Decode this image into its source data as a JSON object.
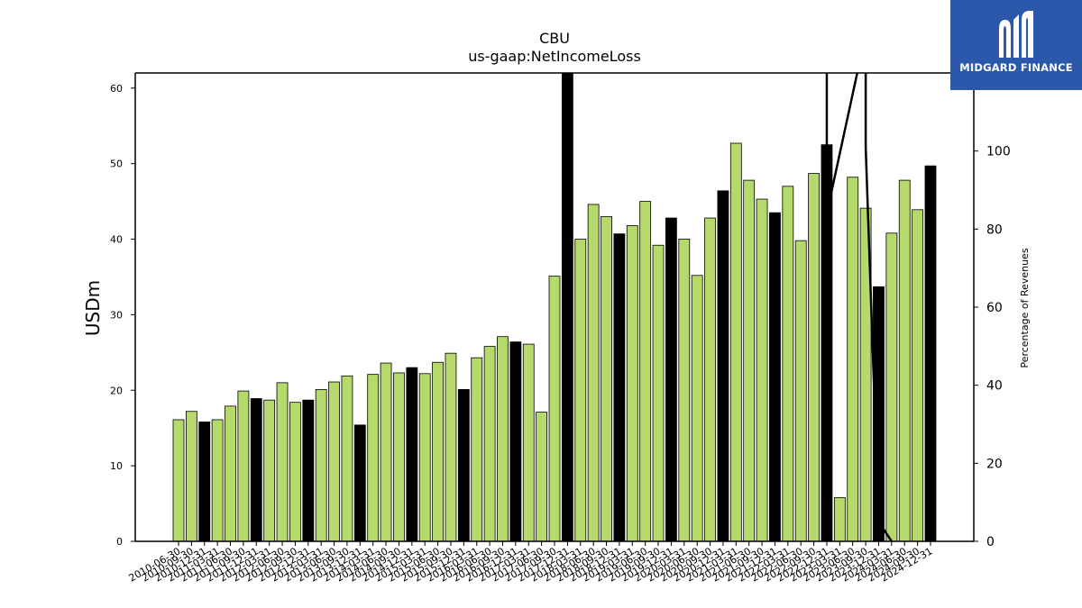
{
  "chart_data": {
    "type": "bar",
    "title": "CBU",
    "subtitle": "us-gaap:NetIncomeLoss",
    "ylabel": "USDm",
    "y2label": "Percentage of Revenues",
    "ylim": [
      0,
      62
    ],
    "y2lim": [
      0,
      120
    ],
    "yticks": [
      0,
      10,
      20,
      30,
      40,
      50,
      60
    ],
    "y2ticks": [
      0,
      20,
      40,
      60,
      80,
      100
    ],
    "bar_colors": {
      "quarter": "#b5d96a",
      "annual": "#000000"
    },
    "line_color": "#000000",
    "categories": [
      "2010-06-30",
      "2010-09-30",
      "2010-12-31",
      "2011-03-31",
      "2011-06-30",
      "2011-09-30",
      "2011-12-31",
      "2012-03-31",
      "2012-06-30",
      "2012-09-30",
      "2012-12-31",
      "2013-03-31",
      "2013-06-30",
      "2013-09-30",
      "2013-12-31",
      "2014-03-31",
      "2014-06-30",
      "2014-09-30",
      "2014-12-31",
      "2015-03-31",
      "2015-06-30",
      "2015-09-30",
      "2015-12-31",
      "2016-03-31",
      "2016-06-30",
      "2016-09-30",
      "2016-12-31",
      "2017-03-31",
      "2017-06-30",
      "2017-09-30",
      "2017-12-31",
      "2018-03-31",
      "2018-06-30",
      "2018-09-30",
      "2018-12-31",
      "2019-03-31",
      "2019-06-30",
      "2019-09-30",
      "2019-12-31",
      "2020-03-31",
      "2020-06-30",
      "2020-09-30",
      "2020-12-31",
      "2021-03-31",
      "2021-06-30",
      "2021-09-30",
      "2021-12-31",
      "2022-03-31",
      "2022-06-30",
      "2022-09-30",
      "2022-12-31",
      "2023-03-31",
      "2023-06-30",
      "2023-09-30",
      "2023-12-31",
      "2024-03-31",
      "2024-06-30",
      "2024-09-30",
      "2024-12-31"
    ],
    "series": [
      {
        "values": [
          16.1,
          17.2,
          15.8,
          16.1,
          17.9,
          19.9,
          18.9,
          18.7,
          21.0,
          18.4,
          18.7,
          20.1,
          21.1,
          21.9,
          15.4,
          22.1,
          23.6,
          22.3,
          23.0,
          22.2,
          23.7,
          24.9,
          20.1,
          24.3,
          25.8,
          27.1,
          26.4,
          26.1,
          17.1,
          35.1,
          62.0,
          40.0,
          44.6,
          43.0,
          40.7,
          41.8,
          45.0,
          39.2,
          42.8,
          40.0,
          35.2,
          42.8,
          46.4,
          52.7,
          47.8,
          45.3,
          43.5,
          47.0,
          39.8,
          48.7,
          52.5,
          5.8,
          48.2,
          44.1,
          33.7,
          40.8,
          47.8,
          43.9,
          49.7
        ],
        "annual": [
          0,
          0,
          1,
          0,
          0,
          0,
          1,
          0,
          0,
          0,
          1,
          0,
          0,
          0,
          1,
          0,
          0,
          0,
          1,
          0,
          0,
          0,
          1,
          0,
          0,
          0,
          1,
          0,
          0,
          0,
          1,
          0,
          0,
          0,
          1,
          0,
          0,
          0,
          1,
          0,
          0,
          0,
          1,
          0,
          0,
          0,
          1,
          0,
          0,
          0,
          1,
          0,
          0,
          0,
          1,
          0,
          0,
          0,
          1
        ]
      },
      {
        "name": "Percentage of Revenues",
        "type": "line",
        "axis": "y2",
        "points": [
          [
            "2022-12-31",
            130
          ],
          [
            "2022-12-31",
            84
          ],
          [
            "2023-09-30",
            130
          ],
          [
            "2023-09-30",
            101
          ],
          [
            "2023-12-31",
            5
          ],
          [
            "2024-03-31",
            0
          ]
        ]
      }
    ]
  },
  "logo": {
    "text": "MIDGARD FINANCE"
  }
}
